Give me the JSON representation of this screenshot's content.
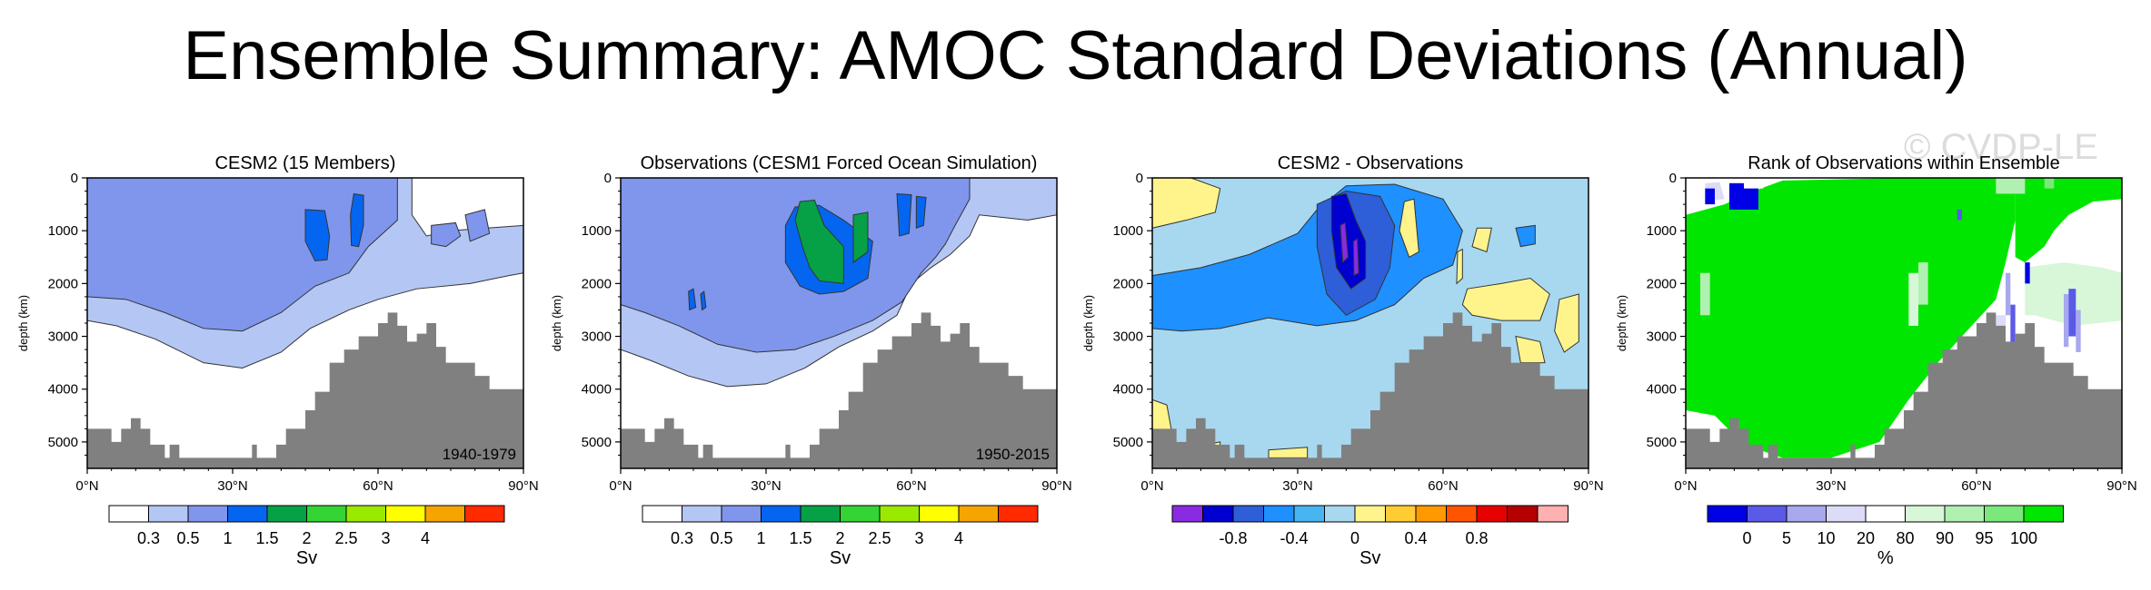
{
  "title": "Ensemble Summary: AMOC Standard Deviations (Annual)",
  "watermark": "© CVDP-LE",
  "colors": {
    "bathymetry": "#808080",
    "panelA_levels": [
      "#ffffff",
      "#b4c6f4",
      "#7f96ec",
      "#0466f0",
      "#06a046",
      "#33d433",
      "#9aea00",
      "#ffff00",
      "#f5a400",
      "#ff2a00"
    ],
    "panelC_levels": [
      "#8a2be2",
      "#0000d0",
      "#2e5fd8",
      "#1e90ff",
      "#48b4f0",
      "#a8d8f0",
      "#fff48c",
      "#ffcc33",
      "#ff9900",
      "#ff5500",
      "#e60000",
      "#b40000",
      "#ffb0b0"
    ],
    "panelD_levels": [
      "#0000e6",
      "#5a5ae6",
      "#a8a8ee",
      "#dcdcf8",
      "#ffffff",
      "#d8f6d8",
      "#b0f0b0",
      "#7ae87a",
      "#00e600"
    ]
  },
  "chart_data": [
    {
      "type": "contour",
      "title": "CESM2 (15 Members)",
      "period": "1940-1979",
      "xlabel": "",
      "ylabel": "depth (km)",
      "xlim": [
        0,
        90
      ],
      "ylim": [
        5500,
        0
      ],
      "x_tick_labels": [
        "0°N",
        "30°N",
        "60°N",
        "90°N"
      ],
      "y_tick_labels": [
        "0",
        "1000",
        "2000",
        "3000",
        "4000",
        "5000"
      ],
      "colorbar_labels": [
        "0.3",
        "0.5",
        "1",
        "1.5",
        "2",
        "2.5",
        "3",
        "4"
      ],
      "colorbar_unit": "Sv"
    },
    {
      "type": "contour",
      "title": "Observations (CESM1 Forced Ocean Simulation)",
      "period": "1950-2015",
      "xlabel": "",
      "ylabel": "depth (km)",
      "xlim": [
        0,
        90
      ],
      "ylim": [
        5500,
        0
      ],
      "x_tick_labels": [
        "0°N",
        "30°N",
        "60°N",
        "90°N"
      ],
      "y_tick_labels": [
        "0",
        "1000",
        "2000",
        "3000",
        "4000",
        "5000"
      ],
      "colorbar_labels": [
        "0.3",
        "0.5",
        "1",
        "1.5",
        "2",
        "2.5",
        "3",
        "4"
      ],
      "colorbar_unit": "Sv"
    },
    {
      "type": "contour",
      "title": "CESM2 - Observations",
      "xlabel": "",
      "ylabel": "depth (km)",
      "xlim": [
        0,
        90
      ],
      "ylim": [
        5500,
        0
      ],
      "x_tick_labels": [
        "0°N",
        "30°N",
        "60°N",
        "90°N"
      ],
      "y_tick_labels": [
        "0",
        "1000",
        "2000",
        "3000",
        "4000",
        "5000"
      ],
      "colorbar_labels": [
        "-0.8",
        "-0.4",
        "0",
        "0.4",
        "0.8"
      ],
      "colorbar_unit": "Sv"
    },
    {
      "type": "heatmap",
      "title": "Rank of Observations within Ensemble",
      "xlabel": "",
      "ylabel": "depth (km)",
      "xlim": [
        0,
        90
      ],
      "ylim": [
        5500,
        0
      ],
      "x_tick_labels": [
        "0°N",
        "30°N",
        "60°N",
        "90°N"
      ],
      "y_tick_labels": [
        "0",
        "1000",
        "2000",
        "3000",
        "4000",
        "5000"
      ],
      "colorbar_labels": [
        "0",
        "5",
        "10",
        "20",
        "80",
        "90",
        "95",
        "100"
      ],
      "colorbar_unit": "%"
    }
  ]
}
